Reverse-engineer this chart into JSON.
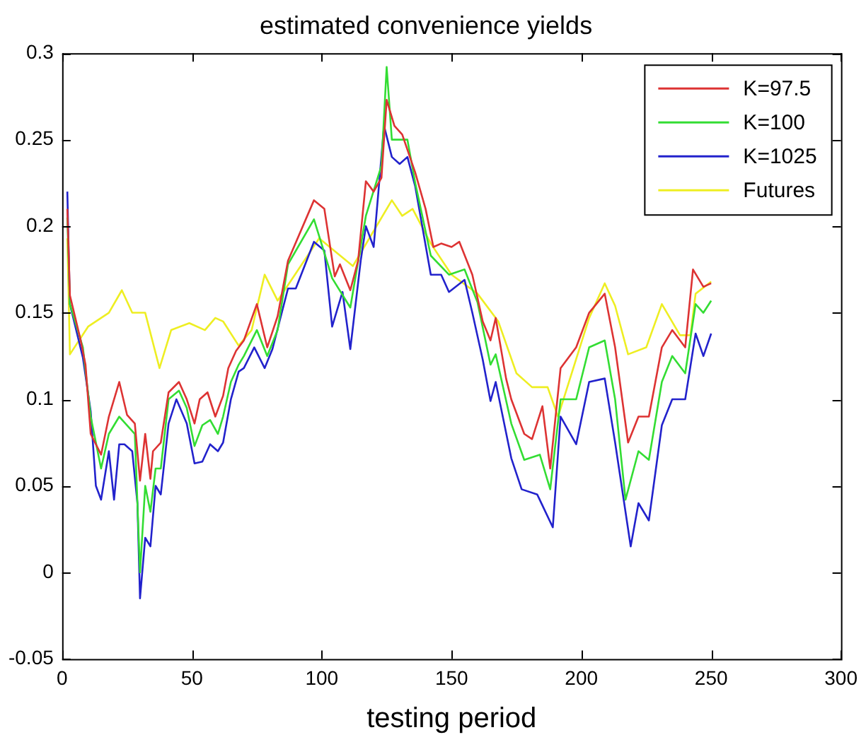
{
  "chart_data": {
    "type": "line",
    "title": "estimated convenience yields",
    "xlabel": "testing period",
    "xlim": [
      0,
      300
    ],
    "xticks": [
      0,
      50,
      100,
      150,
      200,
      250,
      300
    ],
    "ylim": [
      -0.05,
      0.3
    ],
    "yticks": [
      -0.05,
      0,
      0.05,
      0.1,
      0.15,
      0.2,
      0.25,
      0.3
    ],
    "grid": false,
    "legend": "top right",
    "marker": "none",
    "line_style": "solid",
    "series": [
      {
        "name": "K=97.5",
        "color": "#dd3333",
        "x": [
          2,
          3,
          7,
          9,
          11,
          15,
          18,
          22,
          25,
          28,
          30,
          32,
          34,
          35,
          38,
          41,
          45,
          48,
          51,
          53,
          56,
          59,
          62,
          64,
          67,
          70,
          75,
          79,
          83,
          87,
          97,
          101,
          105,
          107,
          111,
          114,
          117,
          120,
          123,
          125,
          128,
          131,
          136,
          140,
          143,
          146,
          150,
          153,
          158,
          162,
          165,
          167,
          171,
          173,
          178,
          181,
          185,
          188,
          192,
          198,
          203,
          209,
          213,
          218,
          222,
          226,
          231,
          235,
          240,
          243,
          247,
          250
        ],
        "values": [
          0.21,
          0.16,
          0.135,
          0.12,
          0.08,
          0.068,
          0.09,
          0.11,
          0.091,
          0.086,
          0.053,
          0.08,
          0.054,
          0.07,
          0.075,
          0.104,
          0.11,
          0.1,
          0.086,
          0.1,
          0.104,
          0.09,
          0.102,
          0.118,
          0.128,
          0.134,
          0.155,
          0.13,
          0.148,
          0.18,
          0.215,
          0.21,
          0.171,
          0.178,
          0.163,
          0.18,
          0.226,
          0.22,
          0.228,
          0.273,
          0.258,
          0.253,
          0.231,
          0.21,
          0.188,
          0.19,
          0.188,
          0.191,
          0.172,
          0.145,
          0.134,
          0.147,
          0.112,
          0.1,
          0.08,
          0.077,
          0.096,
          0.06,
          0.118,
          0.13,
          0.15,
          0.161,
          0.13,
          0.075,
          0.09,
          0.09,
          0.13,
          0.14,
          0.13,
          0.175,
          0.165,
          0.167
        ]
      },
      {
        "name": "K=100",
        "color": "#33dd33",
        "x": [
          2,
          3,
          8,
          11,
          15,
          18,
          22,
          25,
          28,
          30,
          32,
          34,
          36,
          38,
          41,
          45,
          48,
          51,
          54,
          57,
          60,
          62,
          65,
          68,
          70,
          75,
          79,
          83,
          87,
          97,
          104,
          111,
          117,
          123,
          125,
          127,
          133,
          136,
          142,
          149,
          155,
          160,
          165,
          167,
          173,
          178,
          184,
          188,
          192,
          198,
          203,
          209,
          213,
          217,
          222,
          226,
          231,
          235,
          240,
          244,
          247,
          250
        ],
        "values": [
          0.205,
          0.155,
          0.13,
          0.09,
          0.06,
          0.08,
          0.09,
          0.085,
          0.08,
          0.0,
          0.05,
          0.035,
          0.06,
          0.06,
          0.1,
          0.105,
          0.095,
          0.073,
          0.085,
          0.088,
          0.08,
          0.09,
          0.11,
          0.12,
          0.125,
          0.14,
          0.125,
          0.14,
          0.178,
          0.204,
          0.17,
          0.153,
          0.206,
          0.235,
          0.292,
          0.25,
          0.25,
          0.225,
          0.183,
          0.172,
          0.175,
          0.156,
          0.12,
          0.126,
          0.086,
          0.065,
          0.068,
          0.048,
          0.1,
          0.1,
          0.13,
          0.134,
          0.1,
          0.042,
          0.07,
          0.065,
          0.11,
          0.125,
          0.115,
          0.155,
          0.15,
          0.157
        ]
      },
      {
        "name": "K=1025",
        "color": "#2222cc",
        "x": [
          2,
          3,
          8,
          11,
          13,
          15,
          18,
          20,
          22,
          24,
          27,
          29,
          30,
          32,
          34,
          36,
          38,
          41,
          44,
          48,
          51,
          54,
          57,
          60,
          62,
          65,
          68,
          70,
          74,
          78,
          81,
          87,
          90,
          97,
          101,
          104,
          108,
          111,
          115,
          117,
          120,
          124,
          127,
          130,
          133,
          136,
          142,
          146,
          149,
          155,
          158,
          162,
          165,
          167,
          173,
          177,
          183,
          189,
          192,
          198,
          203,
          209,
          213,
          219,
          222,
          226,
          231,
          235,
          240,
          244,
          247,
          250
        ],
        "values": [
          0.22,
          0.155,
          0.124,
          0.093,
          0.05,
          0.042,
          0.07,
          0.042,
          0.074,
          0.074,
          0.07,
          0.04,
          -0.015,
          0.02,
          0.015,
          0.05,
          0.045,
          0.086,
          0.1,
          0.086,
          0.063,
          0.064,
          0.074,
          0.07,
          0.075,
          0.1,
          0.116,
          0.118,
          0.13,
          0.118,
          0.129,
          0.164,
          0.164,
          0.191,
          0.186,
          0.142,
          0.162,
          0.129,
          0.18,
          0.2,
          0.188,
          0.258,
          0.24,
          0.236,
          0.24,
          0.223,
          0.172,
          0.172,
          0.162,
          0.169,
          0.15,
          0.123,
          0.099,
          0.11,
          0.066,
          0.048,
          0.045,
          0.026,
          0.09,
          0.074,
          0.11,
          0.112,
          0.075,
          0.015,
          0.04,
          0.03,
          0.085,
          0.1,
          0.1,
          0.138,
          0.125,
          0.138
        ]
      },
      {
        "name": "Futures",
        "color": "#eeee22",
        "x": [
          2,
          3,
          10,
          18,
          23,
          27,
          32,
          37.5,
          42,
          49,
          55,
          59,
          62,
          68,
          73,
          78,
          83,
          99,
          112,
          127,
          131,
          135,
          142,
          150,
          160,
          168,
          175,
          181,
          187,
          191,
          203,
          209,
          213,
          218,
          225,
          231,
          238,
          242,
          244,
          250
        ],
        "values": [
          0.193,
          0.126,
          0.142,
          0.15,
          0.163,
          0.15,
          0.15,
          0.118,
          0.14,
          0.144,
          0.14,
          0.147,
          0.145,
          0.131,
          0.14,
          0.172,
          0.157,
          0.193,
          0.177,
          0.215,
          0.206,
          0.21,
          0.19,
          0.172,
          0.161,
          0.145,
          0.115,
          0.107,
          0.107,
          0.09,
          0.147,
          0.167,
          0.154,
          0.126,
          0.13,
          0.155,
          0.137,
          0.137,
          0.161,
          0.168
        ]
      }
    ]
  }
}
